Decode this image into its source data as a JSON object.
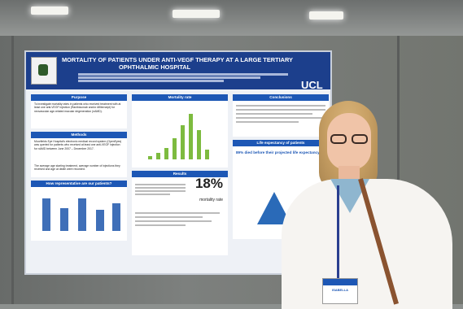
{
  "poster": {
    "title_line1": "MORTALITY OF PATIENTS UNDER ANTI-VEGF THERAPY AT A LARGE TERTIARY",
    "title_line2": "OPHTHALMIC HOSPITAL",
    "logo_text": "UCL",
    "sections": {
      "purpose": {
        "heading": "Purpose",
        "text": "To investigate mortality rates in patients who received treatment with at least one anti-VEGF injection (Ranibizumab and/or Aflibercept) for neovascular age-related macular degeneration (nAMD)."
      },
      "methods": {
        "heading": "Methods",
        "text": "Moorfields Eye Hospital's electronic medical record system (OpenEyes) was queried for patients who received at least one anti-VEGF injection for nAMD between June 2007 – December 2017.",
        "text2": "The average age starting treatment, average number of injections they received and age at death were recorded."
      },
      "representative": {
        "heading": "How representative are our patients?"
      },
      "mortality": {
        "heading": "Mortality rate",
        "big_value": "18%",
        "big_label": "mortality rate"
      },
      "results": {
        "heading": "Results"
      },
      "conclusions": {
        "heading": "Conclusions"
      },
      "life_expectancy": {
        "heading": "Life expectancy of patients",
        "highlight": "89% died before their projected life expectancy"
      }
    }
  },
  "badge": {
    "name": "ISABELLA"
  }
}
